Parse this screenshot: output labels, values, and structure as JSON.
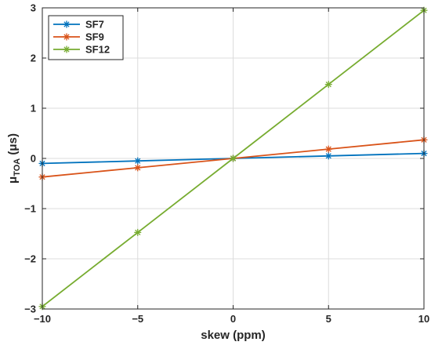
{
  "chart_data": {
    "type": "line",
    "title": "",
    "xlabel": "skew (ppm)",
    "ylabel": "μ",
    "ylabel_subscript": "TOA",
    "ylabel_unit": "(μs)",
    "x": [
      -10,
      -5,
      0,
      5,
      10
    ],
    "xlim": [
      -10,
      10
    ],
    "ylim": [
      -3,
      3
    ],
    "xticks": [
      -10,
      -5,
      0,
      5,
      10
    ],
    "yticks": [
      -3,
      -2,
      -1,
      0,
      1,
      2,
      3
    ],
    "xtick_labels": [
      "−10",
      "−5",
      "0",
      "5",
      "10"
    ],
    "ytick_labels": [
      "−3",
      "−2",
      "−1",
      "0",
      "1",
      "2",
      "3"
    ],
    "grid": true,
    "legend_position": "top-left",
    "series": [
      {
        "name": "SF7",
        "color": "#0072BD",
        "marker": "asterisk",
        "values": [
          -0.1,
          -0.05,
          0,
          0.05,
          0.1
        ]
      },
      {
        "name": "SF9",
        "color": "#D95319",
        "marker": "asterisk",
        "values": [
          -0.37,
          -0.185,
          0,
          0.185,
          0.37
        ]
      },
      {
        "name": "SF12",
        "color": "#77AC30",
        "marker": "asterisk",
        "values": [
          -2.95,
          -1.475,
          0,
          1.475,
          2.95
        ]
      }
    ]
  }
}
